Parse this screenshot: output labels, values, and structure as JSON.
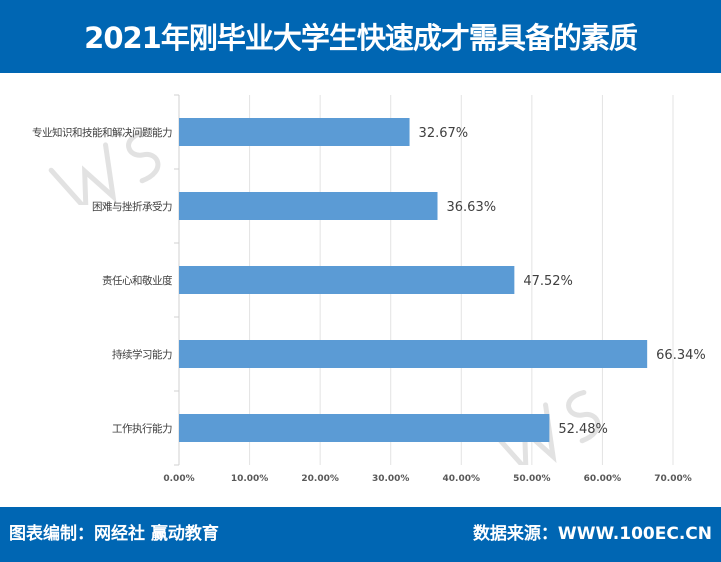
{
  "header": {
    "title": "2021年刚毕业大学生快速成才需具备的素质"
  },
  "footer": {
    "left": "图表编制：网经社  赢动教育",
    "right": "数据来源：WWW.100EC.CN"
  },
  "watermark": {
    "text": "WS网经社",
    "url": "WWW.100EC.CN"
  },
  "colors": {
    "brand": "#0066b3",
    "bar": "#5b9bd5"
  },
  "chart_data": {
    "type": "bar",
    "orientation": "horizontal",
    "title": "2021年刚毕业大学生快速成才需具备的素质",
    "categories": [
      "专业知识和技能和解决问题能力",
      "困难与挫折承受力",
      "责任心和敬业度",
      "持续学习能力",
      "工作执行能力"
    ],
    "values": [
      32.67,
      36.63,
      47.52,
      66.34,
      52.48
    ],
    "value_labels": [
      "32.67%",
      "36.63%",
      "47.52%",
      "66.34%",
      "52.48%"
    ],
    "xlim": [
      0,
      70
    ],
    "xticks": [
      "0.00%",
      "10.00%",
      "20.00%",
      "30.00%",
      "40.00%",
      "50.00%",
      "60.00%",
      "70.00%"
    ],
    "grid": true,
    "xlabel": "",
    "ylabel": ""
  }
}
